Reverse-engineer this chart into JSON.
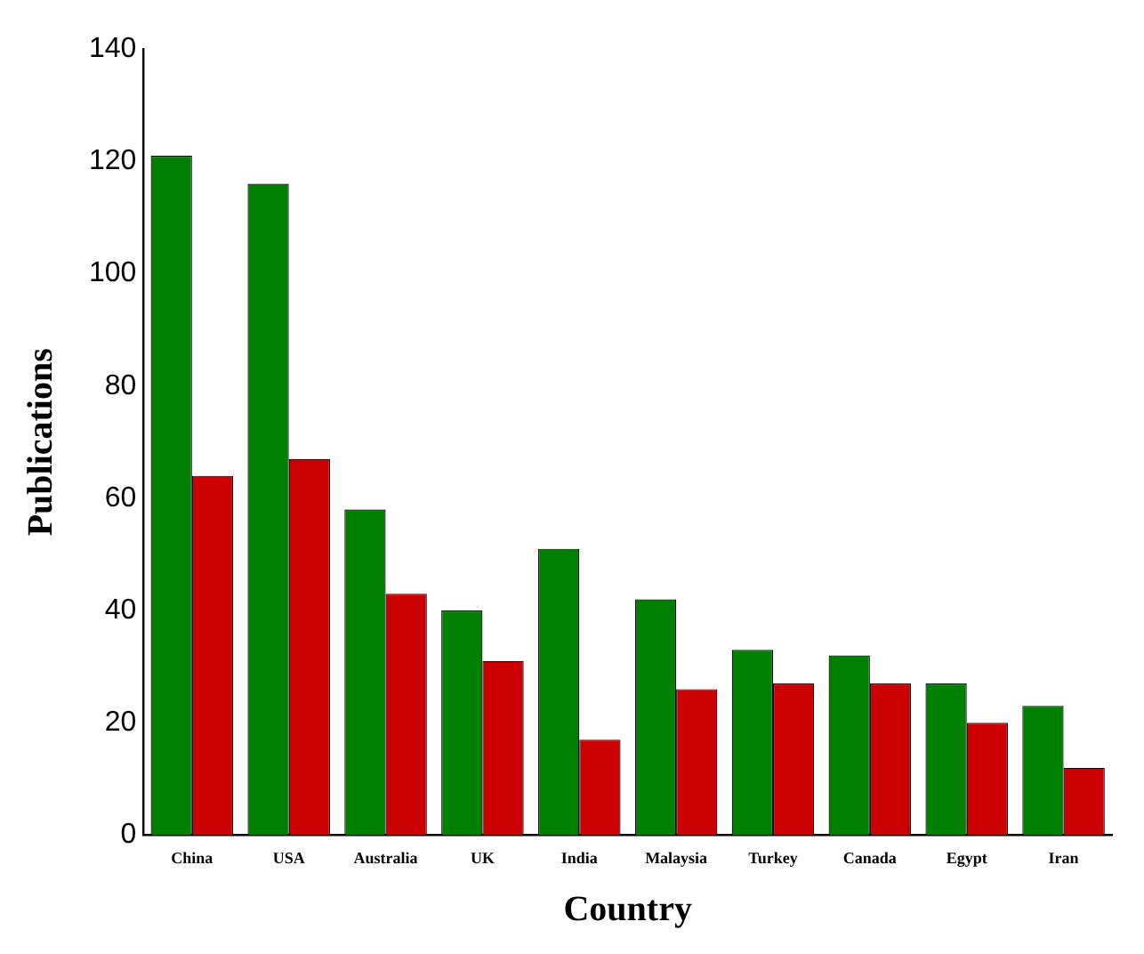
{
  "chart_data": {
    "type": "bar",
    "xlabel": "Country",
    "ylabel": "Publications",
    "categories": [
      "China",
      "USA",
      "Australia",
      "UK",
      "India",
      "Malaysia",
      "Turkey",
      "Canada",
      "Egypt",
      "Iran"
    ],
    "series": [
      {
        "color": "#008000",
        "values": [
          121,
          116,
          58,
          40,
          51,
          42,
          33,
          32,
          27,
          23
        ]
      },
      {
        "color": "#cc0000",
        "values": [
          64,
          67,
          43,
          31,
          17,
          26,
          27,
          27,
          20,
          12
        ]
      }
    ],
    "ylim": [
      0,
      140
    ],
    "yticks": [
      0,
      20,
      40,
      60,
      80,
      100,
      120,
      140
    ],
    "grid": false,
    "legend": false
  }
}
